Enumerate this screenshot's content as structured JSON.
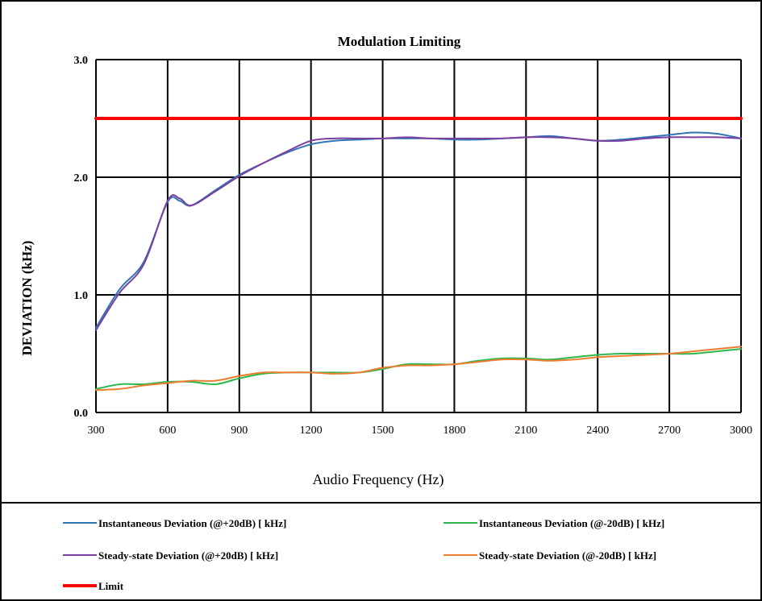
{
  "chart_data": {
    "type": "line",
    "title": "Modulation Limiting",
    "xlabel": "Audio Frequency (Hz)",
    "ylabel": "DEVIATION (kHz)",
    "xlim": [
      300,
      3000
    ],
    "ylim": [
      0,
      3
    ],
    "x_ticks": [
      300,
      600,
      900,
      1200,
      1500,
      1800,
      2100,
      2400,
      2700,
      3000
    ],
    "x_tick_labels": [
      "300",
      "600",
      "900",
      "1200",
      "1500",
      "1800",
      "2100",
      "2400",
      "2700",
      "3000"
    ],
    "y_ticks": [
      0,
      1,
      2,
      3
    ],
    "y_tick_labels": [
      "0.0",
      "1.0",
      "2.0",
      "3.0"
    ],
    "grid": true,
    "legend_position": "bottom",
    "series": [
      {
        "name": "Instantaneous Deviation (@+20dB) [ kHz]",
        "color": "#2E75B6",
        "x": [
          300,
          400,
          500,
          600,
          650,
          700,
          800,
          900,
          1000,
          1100,
          1200,
          1300,
          1400,
          1500,
          1600,
          1700,
          1800,
          1900,
          2000,
          2100,
          2200,
          2300,
          2400,
          2500,
          2600,
          2700,
          2800,
          2900,
          3000
        ],
        "y": [
          0.72,
          1.05,
          1.28,
          1.79,
          1.8,
          1.76,
          1.89,
          2.02,
          2.12,
          2.21,
          2.28,
          2.31,
          2.32,
          2.33,
          2.33,
          2.33,
          2.32,
          2.32,
          2.33,
          2.34,
          2.35,
          2.33,
          2.31,
          2.32,
          2.34,
          2.36,
          2.38,
          2.37,
          2.33
        ]
      },
      {
        "name": "Instantaneous Deviation (@-20dB) [ kHz]",
        "color": "#2DB84D",
        "x": [
          300,
          400,
          500,
          600,
          700,
          800,
          900,
          1000,
          1100,
          1200,
          1300,
          1400,
          1500,
          1600,
          1700,
          1800,
          1900,
          2000,
          2100,
          2200,
          2300,
          2400,
          2500,
          2600,
          2700,
          2800,
          2900,
          3000
        ],
        "y": [
          0.2,
          0.24,
          0.24,
          0.26,
          0.26,
          0.24,
          0.29,
          0.33,
          0.34,
          0.34,
          0.34,
          0.34,
          0.37,
          0.41,
          0.41,
          0.41,
          0.44,
          0.46,
          0.46,
          0.45,
          0.47,
          0.49,
          0.5,
          0.5,
          0.5,
          0.5,
          0.52,
          0.54
        ]
      },
      {
        "name": "Steady-state Deviation (@+20dB) [ kHz]",
        "color": "#7B3FA0",
        "x": [
          300,
          400,
          500,
          600,
          650,
          700,
          800,
          900,
          1000,
          1100,
          1200,
          1300,
          1400,
          1500,
          1600,
          1700,
          1800,
          1900,
          2000,
          2100,
          2200,
          2300,
          2400,
          2500,
          2600,
          2700,
          2800,
          2900,
          3000
        ],
        "y": [
          0.7,
          1.02,
          1.26,
          1.8,
          1.82,
          1.76,
          1.88,
          2.01,
          2.12,
          2.22,
          2.31,
          2.33,
          2.33,
          2.33,
          2.34,
          2.33,
          2.33,
          2.33,
          2.33,
          2.34,
          2.34,
          2.33,
          2.31,
          2.31,
          2.33,
          2.34,
          2.34,
          2.34,
          2.33
        ]
      },
      {
        "name": "Steady-state Deviation (@-20dB) [ kHz]",
        "color": "#ED7D31",
        "x": [
          300,
          400,
          500,
          600,
          700,
          800,
          900,
          1000,
          1100,
          1200,
          1300,
          1400,
          1500,
          1600,
          1700,
          1800,
          1900,
          2000,
          2100,
          2200,
          2300,
          2400,
          2500,
          2600,
          2700,
          2800,
          2900,
          3000
        ],
        "y": [
          0.19,
          0.2,
          0.23,
          0.25,
          0.27,
          0.27,
          0.31,
          0.34,
          0.34,
          0.34,
          0.33,
          0.34,
          0.38,
          0.4,
          0.4,
          0.41,
          0.43,
          0.45,
          0.45,
          0.44,
          0.45,
          0.47,
          0.48,
          0.49,
          0.5,
          0.52,
          0.54,
          0.56
        ]
      },
      {
        "name": "Limit",
        "color": "#FF0000",
        "x": [
          300,
          3000
        ],
        "y": [
          2.5,
          2.5
        ]
      }
    ]
  }
}
